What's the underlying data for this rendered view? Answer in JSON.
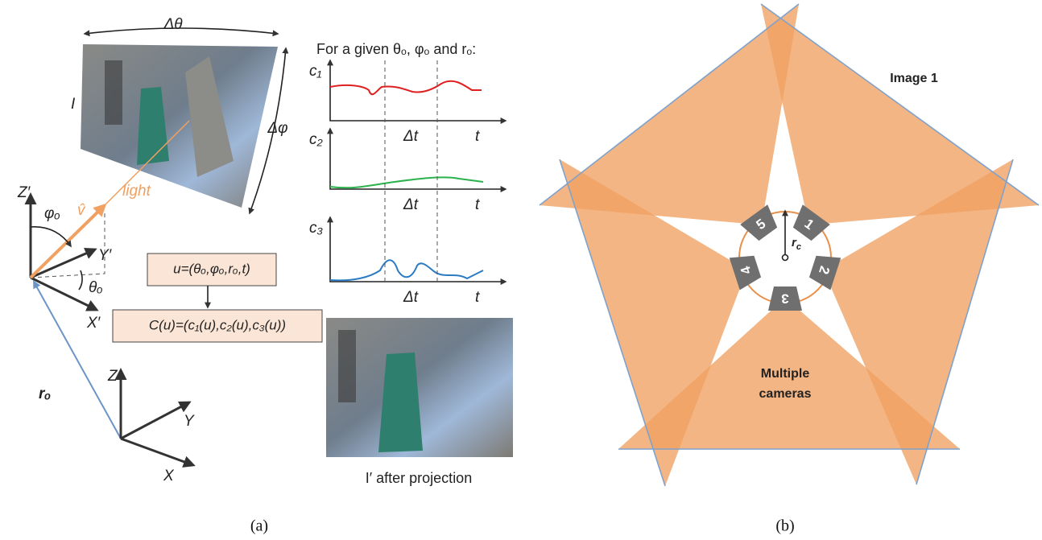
{
  "panel_a": {
    "delta_theta": "Δθ",
    "delta_phi": "Δφ",
    "image_label": "I",
    "light": "light",
    "v_hat": "v̂",
    "phi_o": "φₒ",
    "z_prime": "Z′",
    "y_prime": "Y′",
    "theta_o": "θₒ",
    "x_prime": "X′",
    "u_box": "u=(θₒ,φₒ,rₒ,t)",
    "c_box": "C(u)=(c₁(u),c₂(u),c₃(u))",
    "r_o": "rₒ",
    "z": "Z",
    "y": "Y",
    "x": "X",
    "plots_title": "For a given θₒ, φₒ and rₒ:",
    "plots": [
      {
        "label": "c₁",
        "delta_t": "Δt",
        "t": "t"
      },
      {
        "label": "c₂",
        "delta_t": "Δt",
        "t": "t"
      },
      {
        "label": "c₃",
        "delta_t": "Δt",
        "t": "t"
      }
    ],
    "projection_caption": "I′ after projection",
    "caption": "(a)"
  },
  "panel_b": {
    "image_label": "Image 1",
    "cameras_label": [
      "Multiple",
      "cameras"
    ],
    "cameras": [
      "1",
      "2",
      "3",
      "4",
      "5"
    ],
    "r_c": {
      "base": "r",
      "sub": "c"
    },
    "caption": "(b)"
  }
}
